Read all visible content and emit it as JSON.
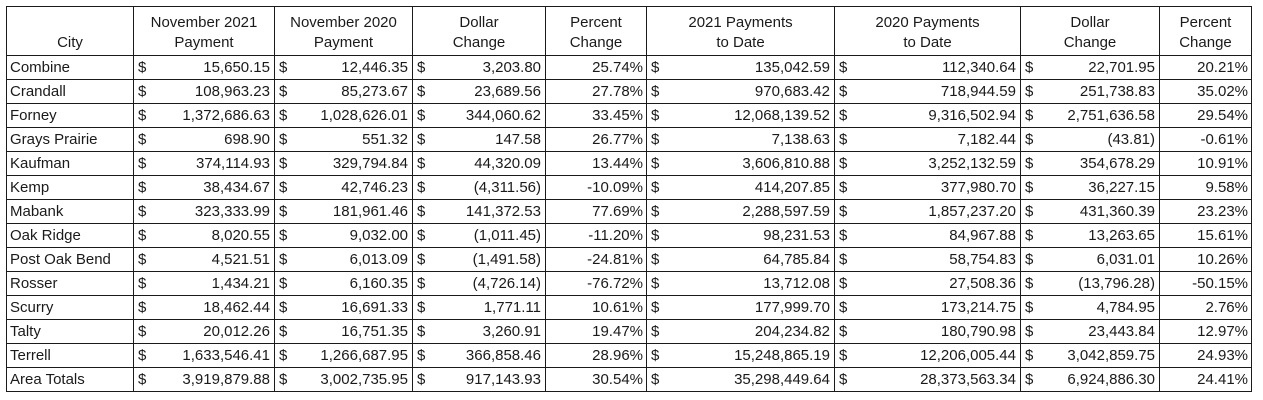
{
  "headers": {
    "city": "City",
    "nov2021": [
      "November 2021",
      "Payment"
    ],
    "nov2020": [
      "November 2020",
      "Payment"
    ],
    "dollar_change": [
      "Dollar",
      "Change"
    ],
    "percent_change": [
      "Percent",
      "Change"
    ],
    "ytd2021": [
      "2021 Payments",
      "to Date"
    ],
    "ytd2020": [
      "2020 Payments",
      "to Date"
    ],
    "ytd_dollar_change": [
      "Dollar",
      "Change"
    ],
    "ytd_percent_change": [
      "Percent",
      "Change"
    ]
  },
  "currency_symbol": "$",
  "rows": [
    {
      "city": "Combine",
      "nov2021": "15,650.15",
      "nov2020": "12,446.35",
      "dchg": "3,203.80",
      "pchg": "25.74%",
      "ytd2021": "135,042.59",
      "ytd2020": "112,340.64",
      "ydchg": "22,701.95",
      "ypchg": "20.21%"
    },
    {
      "city": "Crandall",
      "nov2021": "108,963.23",
      "nov2020": "85,273.67",
      "dchg": "23,689.56",
      "pchg": "27.78%",
      "ytd2021": "970,683.42",
      "ytd2020": "718,944.59",
      "ydchg": "251,738.83",
      "ypchg": "35.02%"
    },
    {
      "city": "Forney",
      "nov2021": "1,372,686.63",
      "nov2020": "1,028,626.01",
      "dchg": "344,060.62",
      "pchg": "33.45%",
      "ytd2021": "12,068,139.52",
      "ytd2020": "9,316,502.94",
      "ydchg": "2,751,636.58",
      "ypchg": "29.54%"
    },
    {
      "city": "Grays Prairie",
      "nov2021": "698.90",
      "nov2020": "551.32",
      "dchg": "147.58",
      "pchg": "26.77%",
      "ytd2021": "7,138.63",
      "ytd2020": "7,182.44",
      "ydchg": "(43.81)",
      "ypchg": "-0.61%"
    },
    {
      "city": "Kaufman",
      "nov2021": "374,114.93",
      "nov2020": "329,794.84",
      "dchg": "44,320.09",
      "pchg": "13.44%",
      "ytd2021": "3,606,810.88",
      "ytd2020": "3,252,132.59",
      "ydchg": "354,678.29",
      "ypchg": "10.91%"
    },
    {
      "city": "Kemp",
      "nov2021": "38,434.67",
      "nov2020": "42,746.23",
      "dchg": "(4,311.56)",
      "pchg": "-10.09%",
      "ytd2021": "414,207.85",
      "ytd2020": "377,980.70",
      "ydchg": "36,227.15",
      "ypchg": "9.58%"
    },
    {
      "city": "Mabank",
      "nov2021": "323,333.99",
      "nov2020": "181,961.46",
      "dchg": "141,372.53",
      "pchg": "77.69%",
      "ytd2021": "2,288,597.59",
      "ytd2020": "1,857,237.20",
      "ydchg": "431,360.39",
      "ypchg": "23.23%"
    },
    {
      "city": "Oak Ridge",
      "nov2021": "8,020.55",
      "nov2020": "9,032.00",
      "dchg": "(1,011.45)",
      "pchg": "-11.20%",
      "ytd2021": "98,231.53",
      "ytd2020": "84,967.88",
      "ydchg": "13,263.65",
      "ypchg": "15.61%"
    },
    {
      "city": "Post Oak Bend",
      "nov2021": "4,521.51",
      "nov2020": "6,013.09",
      "dchg": "(1,491.58)",
      "pchg": "-24.81%",
      "ytd2021": "64,785.84",
      "ytd2020": "58,754.83",
      "ydchg": "6,031.01",
      "ypchg": "10.26%"
    },
    {
      "city": "Rosser",
      "nov2021": "1,434.21",
      "nov2020": "6,160.35",
      "dchg": "(4,726.14)",
      "pchg": "-76.72%",
      "ytd2021": "13,712.08",
      "ytd2020": "27,508.36",
      "ydchg": "(13,796.28)",
      "ypchg": "-50.15%"
    },
    {
      "city": "Scurry",
      "nov2021": "18,462.44",
      "nov2020": "16,691.33",
      "dchg": "1,771.11",
      "pchg": "10.61%",
      "ytd2021": "177,999.70",
      "ytd2020": "173,214.75",
      "ydchg": "4,784.95",
      "ypchg": "2.76%"
    },
    {
      "city": "Talty",
      "nov2021": "20,012.26",
      "nov2020": "16,751.35",
      "dchg": "3,260.91",
      "pchg": "19.47%",
      "ytd2021": "204,234.82",
      "ytd2020": "180,790.98",
      "ydchg": "23,443.84",
      "ypchg": "12.97%"
    },
    {
      "city": "Terrell",
      "nov2021": "1,633,546.41",
      "nov2020": "1,266,687.95",
      "dchg": "366,858.46",
      "pchg": "28.96%",
      "ytd2021": "15,248,865.19",
      "ytd2020": "12,206,005.44",
      "ydchg": "3,042,859.75",
      "ypchg": "24.93%"
    },
    {
      "city": "Area Totals",
      "nov2021": "3,919,879.88",
      "nov2020": "3,002,735.95",
      "dchg": "917,143.93",
      "pchg": "30.54%",
      "ytd2021": "35,298,449.64",
      "ytd2020": "28,373,563.34",
      "ydchg": "6,924,886.30",
      "ypchg": "24.41%"
    }
  ]
}
